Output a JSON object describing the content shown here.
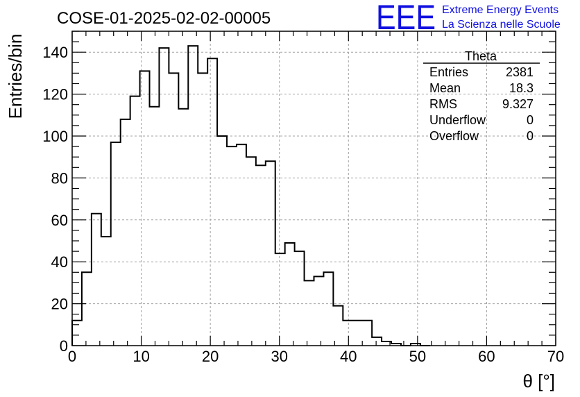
{
  "page_title": "COSE-01-2025-02-02-00005",
  "logo": {
    "mark": "EEE",
    "line1": "Extreme Energy Events",
    "line2": "La Scienza nelle Scuole",
    "color": "#1010e0"
  },
  "stats": {
    "name": "Theta",
    "rows": [
      {
        "label": "Entries",
        "value": "2381"
      },
      {
        "label": "Mean",
        "value": "18.3"
      },
      {
        "label": "RMS",
        "value": "9.327"
      },
      {
        "label": "Underflow",
        "value": "0"
      },
      {
        "label": "Overflow",
        "value": "0"
      }
    ]
  },
  "chart_data": {
    "type": "histogram",
    "title": "COSE-01-2025-02-02-00005",
    "xlabel": "θ [°]",
    "ylabel": "Entries/bin",
    "xlim": [
      0,
      70
    ],
    "ylim": [
      0,
      150
    ],
    "bin_width": 1.4,
    "bin_start": 0,
    "xticks": [
      0,
      10,
      20,
      30,
      40,
      50,
      60,
      70
    ],
    "yticks": [
      0,
      20,
      40,
      60,
      80,
      100,
      120,
      140
    ],
    "grid": true,
    "values": [
      12,
      35,
      63,
      52,
      97,
      108,
      119,
      131,
      114,
      142,
      130,
      113,
      143,
      130,
      137,
      100,
      95,
      96,
      90,
      86,
      88,
      44,
      49,
      45,
      31,
      33,
      35,
      19,
      12,
      12,
      12,
      4,
      2,
      1,
      0,
      1,
      0,
      0,
      0,
      0,
      0,
      0,
      0,
      0,
      0,
      0,
      0,
      0,
      0,
      0
    ]
  }
}
